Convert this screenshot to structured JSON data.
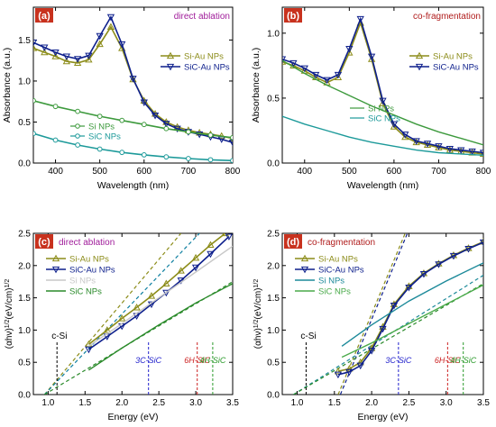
{
  "chart_data": [
    {
      "panel": "(a)",
      "type": "line",
      "title": "direct ablation",
      "title_color": "#a01c9a",
      "xlabel": "Wavelength (nm)",
      "ylabel": "Absorbance (a.u.)",
      "xlim": [
        350,
        800
      ],
      "ylim": [
        0,
        1.9
      ],
      "xticks": [
        400,
        500,
        600,
        700,
        800
      ],
      "yticks": [
        0.0,
        0.5,
        1.0,
        1.5
      ],
      "legend_top": {
        "placement": "right",
        "entries": [
          "Si-Au NPs",
          "SiC-Au NPs"
        ]
      },
      "legend_bottom": {
        "placement": "lower-left",
        "entries": [
          "Si NPs",
          "SiC NPs"
        ]
      },
      "series": [
        {
          "name": "Si-Au NPs",
          "color": "#8c8c19",
          "marker": "triangle-up",
          "x": [
            350,
            375,
            400,
            425,
            450,
            475,
            500,
            525,
            550,
            575,
            600,
            625,
            650,
            675,
            700,
            725,
            750,
            775,
            800
          ],
          "y": [
            1.4,
            1.35,
            1.3,
            1.24,
            1.22,
            1.26,
            1.45,
            1.66,
            1.4,
            1.02,
            0.76,
            0.6,
            0.5,
            0.44,
            0.4,
            0.37,
            0.35,
            0.33,
            0.3
          ]
        },
        {
          "name": "SiC-Au NPs",
          "color": "#0d1f8c",
          "marker": "triangle-down",
          "x": [
            350,
            375,
            400,
            425,
            450,
            475,
            500,
            525,
            550,
            575,
            600,
            625,
            650,
            675,
            700,
            725,
            750,
            775,
            800
          ],
          "y": [
            1.47,
            1.41,
            1.35,
            1.3,
            1.27,
            1.31,
            1.55,
            1.78,
            1.45,
            1.03,
            0.74,
            0.58,
            0.48,
            0.42,
            0.38,
            0.35,
            0.32,
            0.29,
            0.25
          ]
        },
        {
          "name": "Si NPs",
          "color": "#3d9a3d",
          "marker": "circle",
          "x": [
            350,
            400,
            450,
            500,
            550,
            600,
            650,
            700,
            750,
            800
          ],
          "y": [
            0.76,
            0.69,
            0.63,
            0.57,
            0.52,
            0.47,
            0.42,
            0.38,
            0.34,
            0.31
          ]
        },
        {
          "name": "SiC NPs",
          "color": "#1d9a9a",
          "marker": "circle",
          "x": [
            350,
            400,
            450,
            500,
            550,
            600,
            650,
            700,
            750,
            800
          ],
          "y": [
            0.36,
            0.28,
            0.22,
            0.17,
            0.13,
            0.1,
            0.075,
            0.055,
            0.04,
            0.03
          ]
        }
      ]
    },
    {
      "panel": "(b)",
      "type": "line",
      "title": "co-fragmentation",
      "title_color": "#b01c1c",
      "xlabel": "Wavelength (nm)",
      "ylabel": "Absorbance (a.u.)",
      "xlim": [
        350,
        800
      ],
      "ylim": [
        0,
        1.2
      ],
      "xticks": [
        400,
        500,
        600,
        700,
        800
      ],
      "yticks": [
        0.0,
        0.5,
        1.0
      ],
      "legend_top": {
        "placement": "right",
        "entries": [
          "Si-Au NPs",
          "SiC-Au NPs"
        ]
      },
      "legend_bottom": {
        "placement": "center",
        "entries": [
          "Si NPs",
          "SiC NPs"
        ]
      },
      "series": [
        {
          "name": "Si-Au NPs",
          "color": "#8c8c19",
          "marker": "triangle-up",
          "x": [
            350,
            375,
            400,
            425,
            450,
            475,
            500,
            525,
            550,
            575,
            600,
            625,
            650,
            675,
            700,
            725,
            750,
            775,
            800
          ],
          "y": [
            0.78,
            0.75,
            0.71,
            0.66,
            0.62,
            0.66,
            0.85,
            1.08,
            0.8,
            0.46,
            0.28,
            0.2,
            0.16,
            0.14,
            0.12,
            0.1,
            0.09,
            0.08,
            0.07
          ]
        },
        {
          "name": "SiC-Au NPs",
          "color": "#0d1f8c",
          "marker": "triangle-down",
          "x": [
            350,
            375,
            400,
            425,
            450,
            475,
            500,
            525,
            550,
            575,
            600,
            625,
            650,
            675,
            700,
            725,
            750,
            775,
            800
          ],
          "y": [
            0.8,
            0.77,
            0.73,
            0.68,
            0.64,
            0.68,
            0.88,
            1.11,
            0.82,
            0.48,
            0.3,
            0.22,
            0.17,
            0.15,
            0.13,
            0.11,
            0.1,
            0.09,
            0.08
          ]
        },
        {
          "name": "Si NPs",
          "color": "#3d9a3d",
          "marker": "none",
          "x": [
            350,
            400,
            450,
            500,
            550,
            600,
            650,
            700,
            750,
            800
          ],
          "y": [
            0.79,
            0.69,
            0.6,
            0.52,
            0.44,
            0.37,
            0.3,
            0.24,
            0.19,
            0.14
          ]
        },
        {
          "name": "SiC NPs",
          "color": "#1d9a9a",
          "marker": "none",
          "x": [
            350,
            400,
            450,
            500,
            550,
            600,
            650,
            700,
            750,
            800
          ],
          "y": [
            0.36,
            0.3,
            0.25,
            0.2,
            0.16,
            0.13,
            0.1,
            0.08,
            0.07,
            0.06
          ]
        }
      ]
    },
    {
      "panel": "(c)",
      "type": "line",
      "title": "direct ablation",
      "title_color": "#a01c9a",
      "xlabel": "Energy (eV)",
      "ylabel": "(αhν)^1/2(eV/cm)^1/2",
      "xlim": [
        0.8,
        3.5
      ],
      "ylim": [
        0,
        2.5
      ],
      "xticks": [
        1.0,
        1.5,
        2.0,
        2.5,
        3.0,
        3.5
      ],
      "yticks": [
        0.0,
        0.5,
        1.0,
        1.5,
        2.0,
        2.5
      ],
      "legend": {
        "placement": "top-left",
        "entries": [
          "Si-Au NPs",
          "SiC-Au NPs",
          "Si NPs",
          "SiC NPs"
        ]
      },
      "series": [
        {
          "name": "Si-Au NPs",
          "color": "#8c8c19",
          "marker": "triangle-up",
          "x": [
            1.55,
            1.8,
            2.0,
            2.2,
            2.4,
            2.6,
            2.8,
            3.0,
            3.2,
            3.4
          ],
          "y": [
            0.78,
            1.0,
            1.18,
            1.35,
            1.53,
            1.72,
            1.92,
            2.12,
            2.32,
            2.5
          ]
        },
        {
          "name": "SiC-Au NPs",
          "color": "#0d1f8c",
          "marker": "triangle-down",
          "x": [
            1.55,
            1.8,
            2.0,
            2.2,
            2.4,
            2.6,
            2.8,
            3.0,
            3.2,
            3.45
          ],
          "y": [
            0.7,
            0.9,
            1.06,
            1.22,
            1.4,
            1.58,
            1.77,
            1.97,
            2.18,
            2.45
          ]
        },
        {
          "name": "Si NPs",
          "color": "#c8c8c8",
          "marker": "none",
          "x": [
            1.55,
            2.0,
            2.5,
            3.0,
            3.5
          ],
          "y": [
            0.75,
            1.1,
            1.5,
            1.9,
            2.3
          ]
        },
        {
          "name": "SiC NPs",
          "color": "#2a8a2a",
          "marker": "none",
          "x": [
            1.55,
            2.0,
            2.5,
            3.0,
            3.5
          ],
          "y": [
            0.38,
            0.72,
            1.08,
            1.42,
            1.72
          ]
        }
      ],
      "fit_lines": [
        {
          "color": "#8c8c19",
          "x": [
            0.95,
            2.8
          ],
          "y": [
            0.0,
            2.5
          ]
        },
        {
          "color": "#0d7fa0",
          "x": [
            0.95,
            3.05
          ],
          "y": [
            0.0,
            2.5
          ]
        },
        {
          "color": "#2a8a2a",
          "x": [
            0.95,
            3.5
          ],
          "y": [
            0.0,
            1.75
          ]
        }
      ],
      "markers": [
        {
          "label": "c-Si",
          "x": 1.12,
          "color": "#000000"
        },
        {
          "label": "3C-SiC",
          "x": 2.36,
          "color": "#2222cc"
        },
        {
          "label": "6H-SiC",
          "x": 3.02,
          "color": "#cc2222"
        },
        {
          "label": "4H-SiC",
          "x": 3.23,
          "color": "#2a9a2a"
        }
      ]
    },
    {
      "panel": "(d)",
      "type": "line",
      "title": "co-fragmentation",
      "title_color": "#b01c1c",
      "xlabel": "Energy (eV)",
      "ylabel": "(αhν)^1/2(eV/cm)^1/2",
      "xlim": [
        0.8,
        3.5
      ],
      "ylim": [
        0,
        2.5
      ],
      "xticks": [
        1.0,
        1.5,
        2.0,
        2.5,
        3.0,
        3.5
      ],
      "yticks": [
        0.0,
        0.5,
        1.0,
        1.5,
        2.0,
        2.5
      ],
      "legend": {
        "placement": "top-left",
        "entries": [
          "Si-Au NPs",
          "SiC-Au NPs",
          "Si NPs",
          "SiC NPs"
        ]
      },
      "series": [
        {
          "name": "Si-Au NPs",
          "color": "#8c8c19",
          "marker": "triangle-up",
          "x": [
            1.55,
            1.7,
            1.85,
            2.0,
            2.15,
            2.3,
            2.5,
            2.7,
            2.9,
            3.1,
            3.3,
            3.5
          ],
          "y": [
            0.36,
            0.4,
            0.5,
            0.72,
            1.05,
            1.4,
            1.68,
            1.88,
            2.03,
            2.16,
            2.27,
            2.37
          ]
        },
        {
          "name": "SiC-Au NPs",
          "color": "#0d1f8c",
          "marker": "triangle-down",
          "x": [
            1.55,
            1.7,
            1.85,
            2.0,
            2.15,
            2.3,
            2.5,
            2.7,
            2.9,
            3.1,
            3.3,
            3.5
          ],
          "y": [
            0.31,
            0.35,
            0.45,
            0.68,
            1.02,
            1.38,
            1.66,
            1.87,
            2.02,
            2.15,
            2.26,
            2.36
          ]
        },
        {
          "name": "Si NPs",
          "color": "#1d8a9a",
          "marker": "none",
          "x": [
            1.6,
            2.0,
            2.5,
            3.0,
            3.5
          ],
          "y": [
            0.75,
            1.08,
            1.45,
            1.76,
            2.04
          ]
        },
        {
          "name": "SiC NPs",
          "color": "#4aaa4a",
          "marker": "none",
          "x": [
            1.6,
            2.0,
            2.5,
            3.0,
            3.5
          ],
          "y": [
            0.58,
            0.8,
            1.1,
            1.4,
            1.7
          ]
        }
      ],
      "fit_lines": [
        {
          "color": "#8c8c19",
          "x": [
            1.55,
            2.45
          ],
          "y": [
            0.0,
            2.5
          ]
        },
        {
          "color": "#0d1f8c",
          "x": [
            1.58,
            2.48
          ],
          "y": [
            0.0,
            2.5
          ]
        },
        {
          "color": "#1d8a9a",
          "x": [
            0.95,
            3.5
          ],
          "y": [
            0.0,
            1.85
          ]
        },
        {
          "color": "#2a8a2a",
          "x": [
            0.95,
            3.5
          ],
          "y": [
            0.0,
            1.72
          ]
        }
      ],
      "markers": [
        {
          "label": "c-Si",
          "x": 1.12,
          "color": "#000000"
        },
        {
          "label": "3C-SiC",
          "x": 2.36,
          "color": "#2222cc"
        },
        {
          "label": "6H-SiC",
          "x": 3.02,
          "color": "#cc2222"
        },
        {
          "label": "4H-SiC",
          "x": 3.23,
          "color": "#2a9a2a"
        }
      ]
    }
  ]
}
